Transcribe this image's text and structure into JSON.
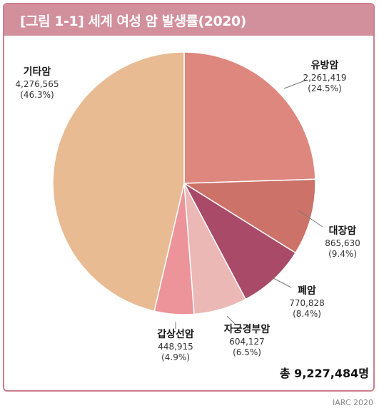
{
  "title": "[그림 1-1] 세계 여성 암 발생률(2020)",
  "total_label": "총 9,227,484명",
  "source": "IARC 2020",
  "chart_data": {
    "type": "pie",
    "title": "[그림 1-1] 세계 여성 암 발생률(2020)",
    "start_angle_deg": 0,
    "direction": "clockwise",
    "slices": [
      {
        "name": "유방암",
        "value": 2261419,
        "value_label": "2,261,419",
        "pct_label": "(24.5%)",
        "color": "#de877f"
      },
      {
        "name": "대장암",
        "value": 865630,
        "value_label": "865,630",
        "pct_label": "(9.4%)",
        "color": "#cc7268"
      },
      {
        "name": "폐암",
        "value": 770828,
        "value_label": "770,828",
        "pct_label": "(8.4%)",
        "color": "#a84a68"
      },
      {
        "name": "자궁경부암",
        "value": 604127,
        "value_label": "604,127",
        "pct_label": "(6.5%)",
        "color": "#ebb8b5"
      },
      {
        "name": "갑상선암",
        "value": 448915,
        "value_label": "448,915",
        "pct_label": "(4.9%)",
        "color": "#ec949a"
      },
      {
        "name": "기타암",
        "value": 4276565,
        "value_label": "4,276,565",
        "pct_label": "(46.3%)",
        "color": "#e8bb93"
      }
    ],
    "total": 9227484
  }
}
